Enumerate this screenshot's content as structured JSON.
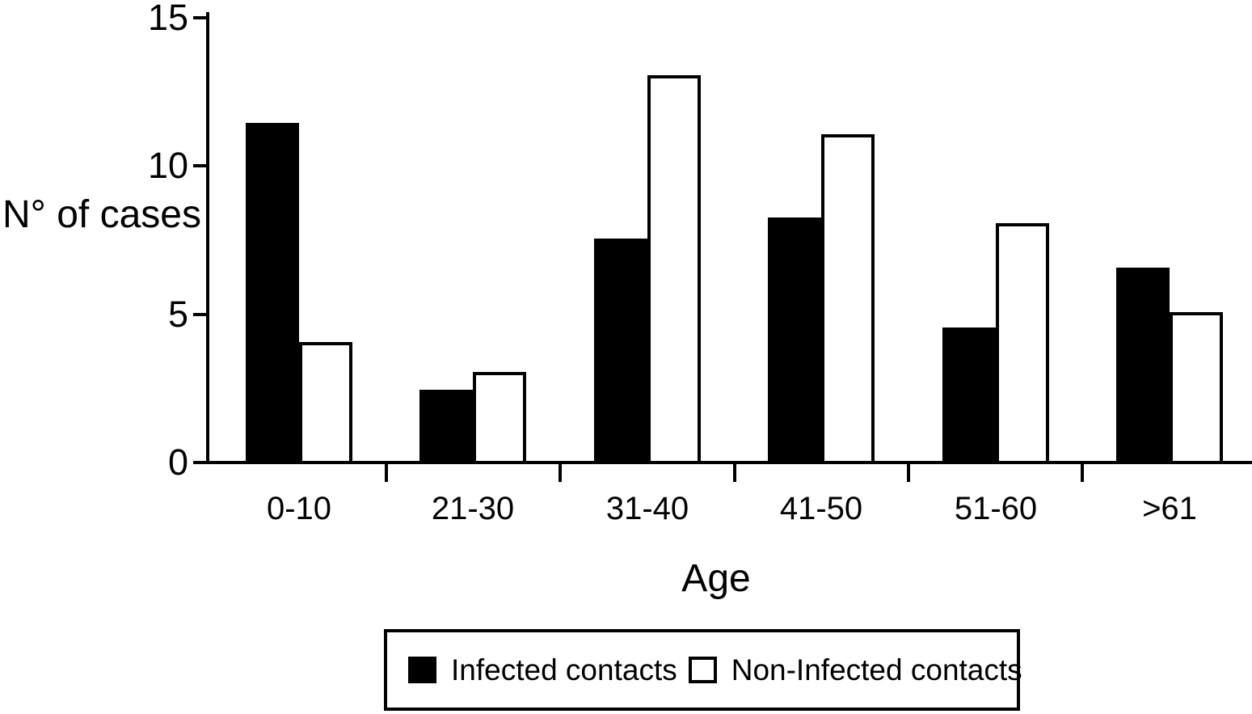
{
  "figure": {
    "background": "#ffffff",
    "ink_color": "#000000"
  },
  "chart_data": {
    "type": "bar",
    "categories": [
      "0-10",
      "21-30",
      "31-40",
      "41-50",
      "51-60",
      ">61"
    ],
    "series": [
      {
        "name": "Infected contacts",
        "fill": "#000000",
        "values": [
          11.4,
          2.4,
          7.5,
          8.2,
          4.5,
          6.5
        ]
      },
      {
        "name": "Non-Infected contacts",
        "fill": "#ffffff",
        "values": [
          4,
          3,
          13,
          11,
          8,
          5
        ]
      }
    ],
    "xlabel": "Age",
    "ylabel": "N° of cases",
    "ylim": [
      0,
      15
    ],
    "yticks": [
      0,
      5,
      10,
      15
    ],
    "grid": false,
    "legend_position": "bottom",
    "axis_color": "#000000",
    "bar_outline_color": "#000000"
  }
}
